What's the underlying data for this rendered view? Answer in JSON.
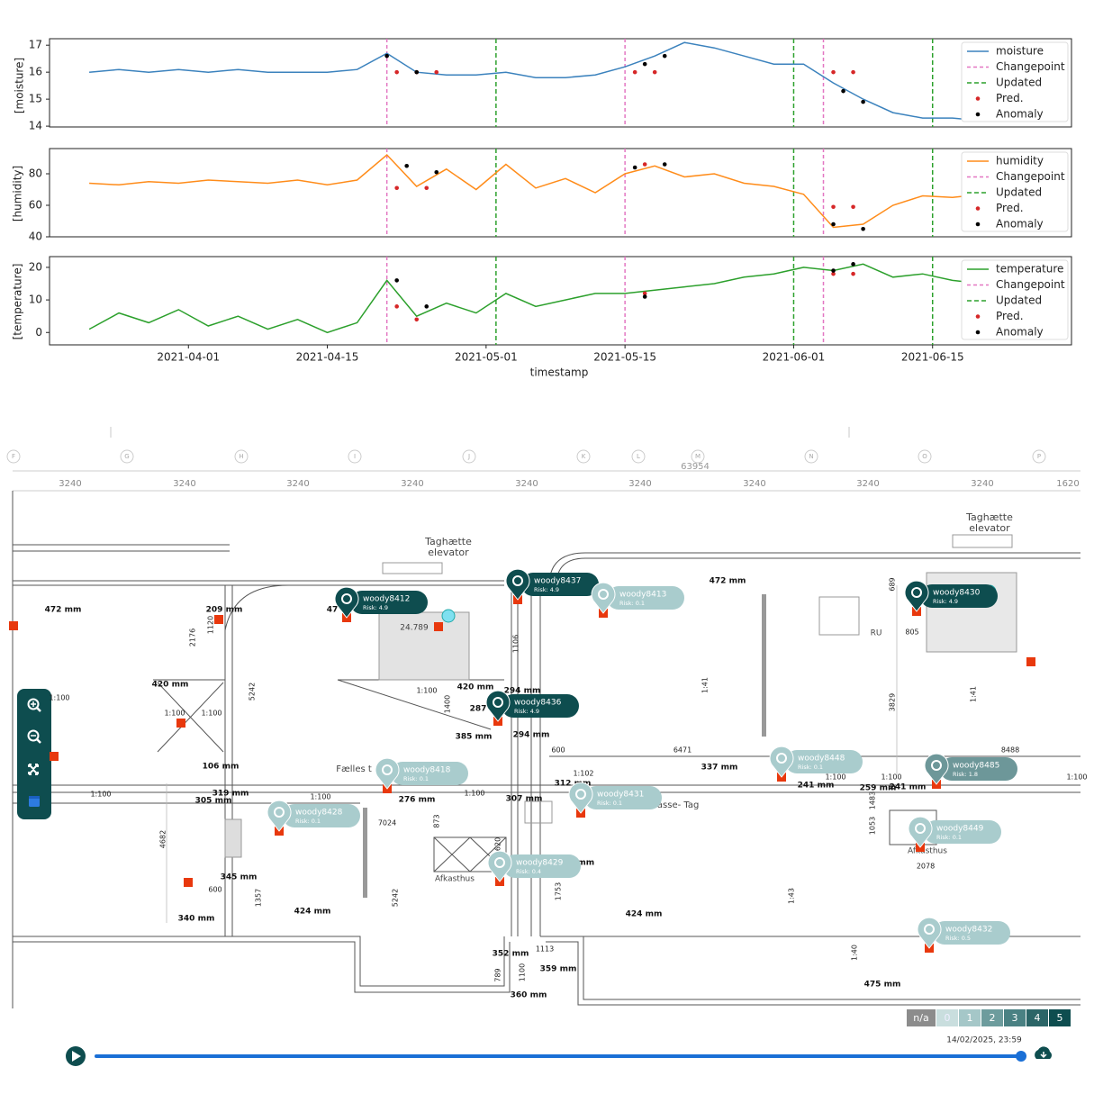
{
  "chart_data": [
    {
      "type": "line",
      "ylabel": "[moisture]",
      "legend": "upper right",
      "x": [
        "2021-03-22",
        "2021-03-25",
        "2021-03-28",
        "2021-03-31",
        "2021-04-03",
        "2021-04-06",
        "2021-04-09",
        "2021-04-12",
        "2021-04-15",
        "2021-04-18",
        "2021-04-21",
        "2021-04-24",
        "2021-04-27",
        "2021-04-30",
        "2021-05-03",
        "2021-05-06",
        "2021-05-09",
        "2021-05-12",
        "2021-05-15",
        "2021-05-18",
        "2021-05-21",
        "2021-05-24",
        "2021-05-27",
        "2021-05-30",
        "2021-06-02",
        "2021-06-05",
        "2021-06-08",
        "2021-06-11",
        "2021-06-14",
        "2021-06-17",
        "2021-06-20",
        "2021-06-23"
      ],
      "series": [
        {
          "name": "moisture",
          "color": "#3b82bd",
          "values": [
            16.0,
            16.1,
            16.0,
            16.1,
            16.0,
            16.1,
            16.0,
            16.0,
            16.0,
            16.1,
            16.7,
            16.0,
            15.9,
            15.9,
            16.0,
            15.8,
            15.8,
            15.9,
            16.2,
            16.6,
            17.1,
            16.9,
            16.6,
            16.3,
            16.3,
            15.6,
            15.0,
            14.5,
            14.3,
            14.3,
            14.2,
            14.2
          ]
        }
      ],
      "changepoints": {
        "name": "Changepoint",
        "color": "#e377c2",
        "x": [
          "2021-04-21",
          "2021-05-15",
          "2021-06-04"
        ]
      },
      "updated": {
        "name": "Updated",
        "color": "#2ca02c",
        "x": [
          "2021-05-02",
          "2021-06-01",
          "2021-06-15"
        ]
      },
      "pred": {
        "name": "Pred.",
        "color": "#d62728",
        "x": [
          "2021-04-22",
          "2021-04-24",
          "2021-04-26",
          "2021-05-16",
          "2021-05-18",
          "2021-06-05",
          "2021-06-07"
        ],
        "values": [
          16.0,
          16.0,
          16.0,
          16.0,
          16.0,
          16.0,
          16.0
        ]
      },
      "anomaly": {
        "name": "Anomaly",
        "color": "#000000",
        "x": [
          "2021-04-21",
          "2021-04-24",
          "2021-05-17",
          "2021-05-19",
          "2021-06-06",
          "2021-06-08"
        ],
        "values": [
          16.6,
          16.0,
          16.3,
          16.6,
          15.3,
          14.9
        ]
      },
      "xlim": [
        "2021-03-18",
        "2021-06-29"
      ],
      "ylim": [
        13.97,
        17.24
      ],
      "yticks": [
        14,
        15,
        16,
        17
      ]
    },
    {
      "type": "line",
      "ylabel": "[humidity]",
      "legend": "upper right",
      "x": [
        "2021-03-22",
        "2021-03-25",
        "2021-03-28",
        "2021-03-31",
        "2021-04-03",
        "2021-04-06",
        "2021-04-09",
        "2021-04-12",
        "2021-04-15",
        "2021-04-18",
        "2021-04-21",
        "2021-04-24",
        "2021-04-27",
        "2021-04-30",
        "2021-05-03",
        "2021-05-06",
        "2021-05-09",
        "2021-05-12",
        "2021-05-15",
        "2021-05-18",
        "2021-05-21",
        "2021-05-24",
        "2021-05-27",
        "2021-05-30",
        "2021-06-02",
        "2021-06-05",
        "2021-06-08",
        "2021-06-11",
        "2021-06-14",
        "2021-06-17",
        "2021-06-20",
        "2021-06-23"
      ],
      "series": [
        {
          "name": "humidity",
          "color": "#ff8c1a",
          "values": [
            74,
            73,
            75,
            74,
            76,
            75,
            74,
            76,
            73,
            76,
            92,
            72,
            83,
            70,
            86,
            71,
            77,
            68,
            80,
            85,
            78,
            80,
            74,
            72,
            67,
            46,
            48,
            60,
            66,
            65,
            67,
            68
          ]
        }
      ],
      "changepoints": {
        "name": "Changepoint",
        "color": "#e377c2",
        "x": [
          "2021-04-21",
          "2021-05-15",
          "2021-06-04"
        ]
      },
      "updated": {
        "name": "Updated",
        "color": "#2ca02c",
        "x": [
          "2021-05-02",
          "2021-06-01",
          "2021-06-15"
        ]
      },
      "pred": {
        "name": "Pred.",
        "color": "#d62728",
        "x": [
          "2021-04-22",
          "2021-04-25",
          "2021-05-17",
          "2021-06-05",
          "2021-06-07"
        ],
        "values": [
          71,
          71,
          86,
          59,
          59
        ]
      },
      "anomaly": {
        "name": "Anomaly",
        "color": "#000000",
        "x": [
          "2021-04-23",
          "2021-04-26",
          "2021-05-16",
          "2021-05-19",
          "2021-06-05",
          "2021-06-08"
        ],
        "values": [
          85,
          81,
          84,
          86,
          48,
          45
        ]
      },
      "xlim": [
        "2021-03-18",
        "2021-06-29"
      ],
      "ylim": [
        40,
        96
      ],
      "yticks": [
        40,
        60,
        80
      ]
    },
    {
      "type": "line",
      "ylabel": "[temperature]",
      "xlabel": "timestamp",
      "legend": "upper right",
      "x": [
        "2021-03-22",
        "2021-03-25",
        "2021-03-28",
        "2021-03-31",
        "2021-04-03",
        "2021-04-06",
        "2021-04-09",
        "2021-04-12",
        "2021-04-15",
        "2021-04-18",
        "2021-04-21",
        "2021-04-24",
        "2021-04-27",
        "2021-04-30",
        "2021-05-03",
        "2021-05-06",
        "2021-05-09",
        "2021-05-12",
        "2021-05-15",
        "2021-05-18",
        "2021-05-21",
        "2021-05-24",
        "2021-05-27",
        "2021-05-30",
        "2021-06-02",
        "2021-06-05",
        "2021-06-08",
        "2021-06-11",
        "2021-06-14",
        "2021-06-17",
        "2021-06-20",
        "2021-06-23"
      ],
      "series": [
        {
          "name": "temperature",
          "color": "#2ca02c",
          "values": [
            1,
            6,
            3,
            7,
            2,
            5,
            1,
            4,
            0,
            3,
            16,
            5,
            9,
            6,
            12,
            8,
            10,
            12,
            12,
            13,
            14,
            15,
            17,
            18,
            20,
            19,
            21,
            17,
            18,
            16,
            15,
            14
          ]
        }
      ],
      "changepoints": {
        "name": "Changepoint",
        "color": "#e377c2",
        "x": [
          "2021-04-21",
          "2021-05-15",
          "2021-06-04"
        ]
      },
      "updated": {
        "name": "Updated",
        "color": "#2ca02c",
        "x": [
          "2021-05-02",
          "2021-06-01",
          "2021-06-15"
        ]
      },
      "pred": {
        "name": "Pred.",
        "color": "#d62728",
        "x": [
          "2021-04-22",
          "2021-04-24",
          "2021-05-17",
          "2021-06-05",
          "2021-06-07"
        ],
        "values": [
          8,
          4,
          12,
          18,
          18
        ]
      },
      "anomaly": {
        "name": "Anomaly",
        "color": "#000000",
        "x": [
          "2021-04-22",
          "2021-04-25",
          "2021-05-17",
          "2021-06-05",
          "2021-06-07"
        ],
        "values": [
          16,
          8,
          11,
          19,
          21
        ]
      },
      "xlim": [
        "2021-03-18",
        "2021-06-29"
      ],
      "ylim": [
        -3.8,
        23.3
      ],
      "yticks": [
        0,
        10,
        20
      ],
      "xticks": [
        "2021-04-01",
        "2021-04-15",
        "2021-05-01",
        "2021-05-15",
        "2021-06-01",
        "2021-06-15"
      ]
    }
  ],
  "plan": {
    "columns": [
      "F",
      "G",
      "H",
      "I",
      "J",
      "K",
      "L",
      "M",
      "N",
      "O",
      "P"
    ],
    "spans": [
      "3240",
      "3240",
      "3240",
      "3240",
      "3240",
      "3240",
      "3240",
      "3240",
      "3240",
      "1620"
    ],
    "total": "63954",
    "labels": [
      "472 mm",
      "209 mm",
      "472 mm",
      "420 mm",
      "420 mm",
      "294 mm",
      "385 mm",
      "294 mm",
      "106 mm",
      "337 mm",
      "312 mm",
      "241 mm",
      "259 mm",
      "241 mm",
      "319 mm",
      "305 mm",
      "276 mm",
      "307 mm",
      "345 mm",
      "340 mm",
      "424 mm",
      "424 mm",
      "5 mm",
      "352 mm",
      "359 mm",
      "360 mm",
      "475 mm",
      "287",
      "47"
    ],
    "notes": [
      "Taghætte",
      "elevator",
      "Taghætte",
      "elevator",
      "24.789",
      "Fælles t",
      "erasse- Tag",
      "Afkasthus",
      "Afkasthus",
      "RU",
      "1:100",
      "1:100",
      "1:100",
      "1:100",
      "1:100",
      "1:100",
      "1:100",
      "1:100",
      "1:102",
      "1:100",
      "1:100",
      "2176",
      "1120",
      "5242",
      "4682",
      "1357",
      "600",
      "1400",
      "873",
      "7024",
      "5242",
      "1620",
      "1753",
      "1113",
      "789",
      "1100",
      "1106",
      "6471",
      "8488",
      "600",
      "689",
      "805",
      "3829",
      "1053",
      "1483",
      "2078",
      "1:41",
      "1:41",
      "1:43",
      "1:40"
    ],
    "sensors": [
      {
        "name": "woody8412",
        "risk": "Risk: 4.9",
        "color": "#0e4d4f"
      },
      {
        "name": "woody8437",
        "risk": "Risk: 4.9",
        "color": "#0e4d4f"
      },
      {
        "name": "woody8413",
        "risk": "Risk: 0.1",
        "color": "#a9cccd"
      },
      {
        "name": "woody8430",
        "risk": "Risk: 4.9",
        "color": "#0e4d4f"
      },
      {
        "name": "woody8436",
        "risk": "Risk: 4.9",
        "color": "#0e4d4f"
      },
      {
        "name": "woody8418",
        "risk": "Risk: 0.1",
        "color": "#a9cccd"
      },
      {
        "name": "woody8431",
        "risk": "Risk: 0.1",
        "color": "#a9cccd"
      },
      {
        "name": "woody8448",
        "risk": "Risk: 0.1",
        "color": "#a9cccd"
      },
      {
        "name": "woody8485",
        "risk": "Risk: 1.8",
        "color": "#6d9799"
      },
      {
        "name": "woody8428",
        "risk": "Risk: 0.1",
        "color": "#a9cccd"
      },
      {
        "name": "woody8449",
        "risk": "Risk: 0.1",
        "color": "#a9cccd"
      },
      {
        "name": "woody8429",
        "risk": "Risk: 0.4",
        "color": "#a9cccd"
      },
      {
        "name": "woody8432",
        "risk": "Risk: 0.5",
        "color": "#a9cccd"
      }
    ]
  },
  "risk_scale": {
    "labels": [
      "n/a",
      "0",
      "1",
      "2",
      "3",
      "4",
      "5"
    ],
    "colors": [
      "#8c8c8c",
      "#c9dede",
      "#a5c7c8",
      "#6d9c9d",
      "#4a8183",
      "#2b6567",
      "#0e4d4f"
    ]
  },
  "timestamp": "14/02/2025, 23:59"
}
